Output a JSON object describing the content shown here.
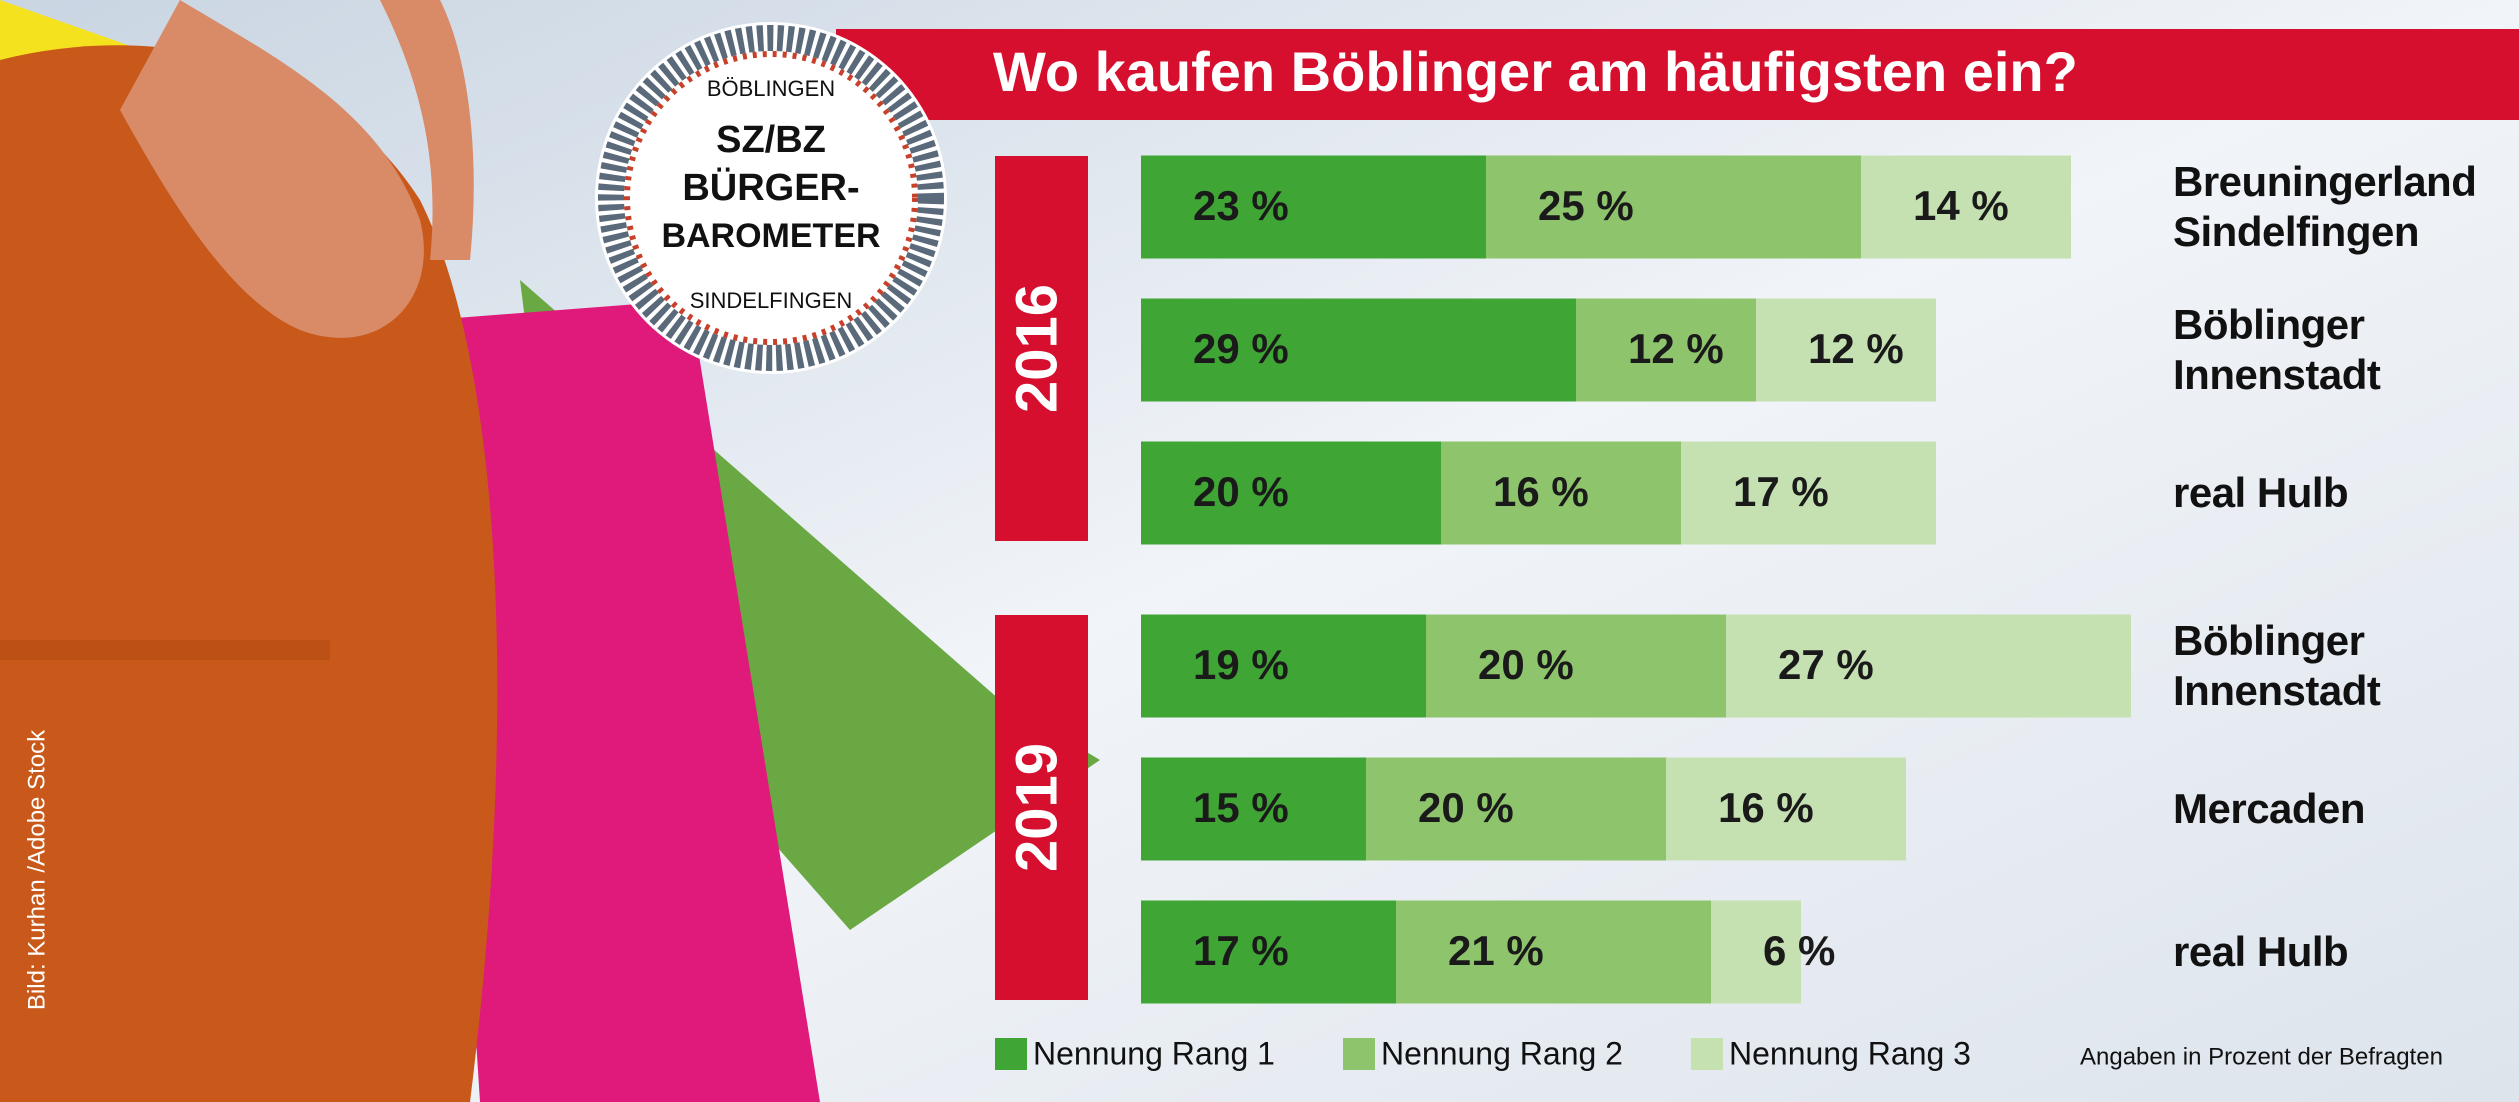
{
  "chart_data": {
    "type": "stacked-bar",
    "title": "Wo kaufen Böblinger am häufigsten ein?",
    "groups": [
      "2016",
      "2019"
    ],
    "categories": [
      "Breuningerland Sindelfingen",
      "Böblinger Innenstadt",
      "real Hulb",
      "Böblinger Innenstadt",
      "Mercaden",
      "real Hulb"
    ],
    "series": [
      {
        "name": "Nennung Rang 1",
        "color": "#3fa535",
        "values": [
          23,
          29,
          20,
          19,
          15,
          17
        ],
        "value_labels": [
          "23 %",
          "29 %",
          "20 %",
          "19 %",
          "15 %",
          "17 %"
        ]
      },
      {
        "name": "Nennung Rang 2",
        "color": "#8ec46b",
        "values": [
          25,
          12,
          16,
          20,
          20,
          21
        ],
        "value_labels": [
          "25 %",
          "12 %",
          "16 %",
          "20 %",
          "20 %",
          "21 %"
        ]
      },
      {
        "name": "Nennung Rang 3",
        "color": "#c6e1b1",
        "values": [
          14,
          12,
          17,
          27,
          16,
          6
        ],
        "value_labels": [
          "14 %",
          "12 %",
          "17 %",
          "27 %",
          "16 %",
          "6 %"
        ]
      }
    ],
    "note": "Angaben in Prozent der Befragten",
    "credit": "Bild: Kurhan /Adobe Stock",
    "badge": {
      "top": "BÖBLINGEN",
      "lines": [
        "SZ/BZ",
        "BÜRGER-",
        "BAROMETER"
      ],
      "bottom": "SINDELFINGEN"
    }
  }
}
